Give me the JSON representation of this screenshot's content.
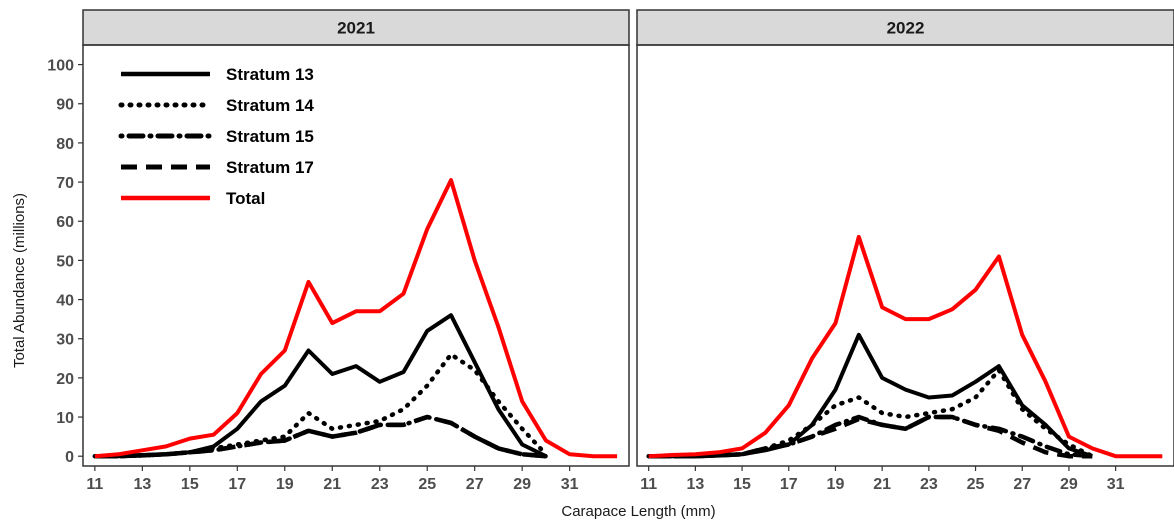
{
  "chart_data": {
    "type": "line",
    "xlabel": "Carapace Length (mm)",
    "ylabel": "Total Abundance (millions)",
    "xlim": [
      10.5,
      33.5
    ],
    "ylim": [
      -2.5,
      105
    ],
    "xticks": [
      11,
      13,
      15,
      17,
      19,
      21,
      23,
      25,
      27,
      29,
      31
    ],
    "xtick_labels": [
      "11",
      "13",
      "15",
      "17",
      "19",
      "21",
      "23",
      "25",
      "27",
      "29",
      "31"
    ],
    "yticks": [
      0,
      10,
      20,
      30,
      40,
      50,
      60,
      70,
      80,
      90,
      100
    ],
    "ytick_labels": [
      "0",
      "10",
      "20",
      "30",
      "40",
      "50",
      "60",
      "70",
      "80",
      "90",
      "100"
    ],
    "grid": false,
    "legend_position": "top-left of first panel",
    "x": [
      11,
      12,
      13,
      14,
      15,
      16,
      17,
      18,
      19,
      20,
      21,
      22,
      23,
      24,
      25,
      26,
      27,
      28,
      29,
      30,
      31,
      32,
      33
    ],
    "legend": [
      {
        "name": "Stratum 13",
        "color": "#000000",
        "dash": "solid"
      },
      {
        "name": "Stratum 14",
        "color": "#000000",
        "dash": "dotted"
      },
      {
        "name": "Stratum 15",
        "color": "#000000",
        "dash": "dotdash"
      },
      {
        "name": "Stratum 17",
        "color": "#000000",
        "dash": "dashed"
      },
      {
        "name": "Total",
        "color": "#ff0000",
        "dash": "solid"
      }
    ],
    "panels": [
      {
        "title": "2021",
        "series": [
          {
            "name": "Stratum 13",
            "values": [
              0,
              0,
              0.3,
              0.5,
              1,
              2.5,
              7,
              14,
              18,
              27,
              21,
              23,
              19,
              21.5,
              32,
              36,
              24,
              12,
              3,
              0,
              null,
              null,
              null
            ]
          },
          {
            "name": "Stratum 14",
            "values": [
              0,
              0,
              0.2,
              0.5,
              1,
              2,
              3,
              4,
              5,
              11,
              7,
              8,
              9,
              12,
              18,
              26,
              22,
              14,
              7,
              0.5,
              null,
              null,
              null
            ]
          },
          {
            "name": "Stratum 15",
            "values": [
              0,
              0,
              0.2,
              0.5,
              1,
              1.5,
              2.5,
              3.5,
              4,
              6.5,
              5,
              6,
              8,
              8,
              10,
              8.5,
              5,
              2,
              0.5,
              0,
              null,
              null,
              null
            ]
          },
          {
            "name": "Stratum 17",
            "values": [
              0,
              0,
              0.2,
              0.5,
              1,
              1.5,
              2.5,
              3.5,
              4,
              6.5,
              5,
              6,
              8,
              8,
              10,
              8.5,
              5,
              2,
              0.5,
              0,
              null,
              null,
              null
            ]
          },
          {
            "name": "Total",
            "values": [
              0,
              0.5,
              1.5,
              2.5,
              4.5,
              5.5,
              11,
              21,
              27,
              44.5,
              34,
              37,
              37,
              41.5,
              58,
              70.5,
              50,
              33,
              14,
              4,
              0.5,
              0,
              0
            ]
          }
        ]
      },
      {
        "title": "2022",
        "series": [
          {
            "name": "Stratum 13",
            "values": [
              0,
              0,
              0,
              0.2,
              0.5,
              1.5,
              3,
              8,
              17,
              31,
              20,
              17,
              15,
              15.5,
              19,
              23,
              13,
              8,
              2,
              0,
              null,
              null,
              null
            ]
          },
          {
            "name": "Stratum 14",
            "values": [
              0,
              0,
              0,
              0.2,
              0.5,
              2,
              4,
              8,
              13,
              15,
              11,
              10,
              11,
              12,
              15,
              22,
              12,
              7,
              3,
              0,
              null,
              null,
              null
            ]
          },
          {
            "name": "Stratum 15",
            "values": [
              0,
              0,
              0,
              0.2,
              0.5,
              2,
              3,
              5,
              8,
              10,
              8,
              7,
              10,
              10,
              8,
              7,
              5,
              2.5,
              0.5,
              0,
              null,
              null,
              null
            ]
          },
          {
            "name": "Stratum 17",
            "values": [
              0,
              0,
              0,
              0.2,
              0.5,
              2,
              3,
              5,
              7,
              9.5,
              8,
              7,
              10,
              10,
              8,
              6.5,
              3.5,
              1,
              0,
              0,
              null,
              null,
              null
            ]
          },
          {
            "name": "Total",
            "values": [
              0,
              0.3,
              0.5,
              1,
              2,
              6,
              13,
              25,
              34,
              56,
              38,
              35,
              35,
              37.5,
              42.5,
              51,
              31,
              19,
              5,
              2,
              0,
              0,
              0
            ]
          }
        ]
      }
    ]
  }
}
